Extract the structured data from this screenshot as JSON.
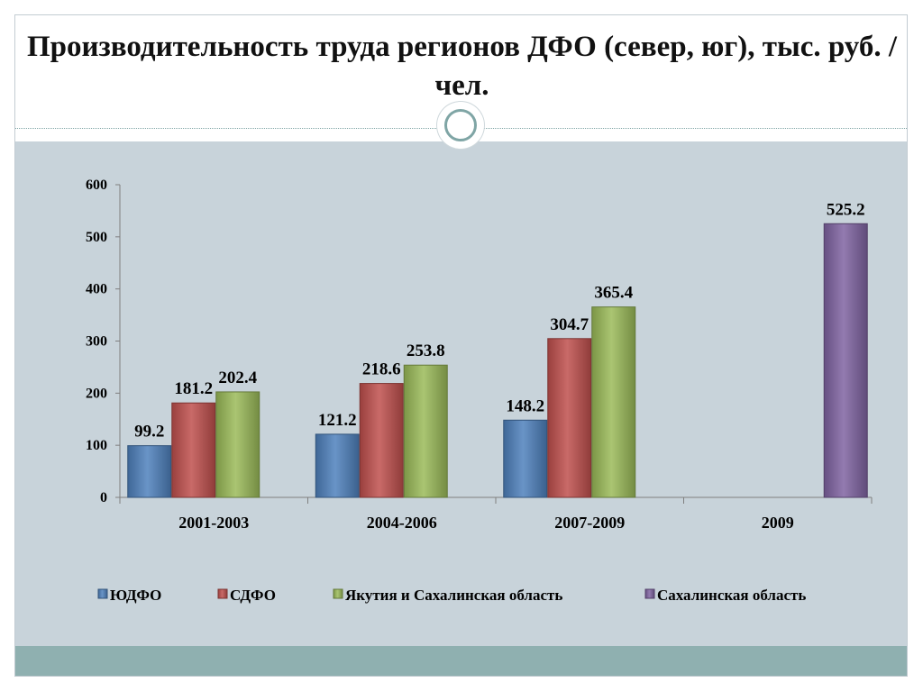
{
  "slide": {
    "title": "Производительность труда регионов ДФО (север, юг), тыс. руб. / чел."
  },
  "colors": {
    "background": "#ffffff",
    "content_area": "#c8d3da",
    "footer_bar": "#8fb0b0",
    "accent": "#7fa5a5"
  },
  "chart_data": {
    "type": "bar",
    "title": "Производительность труда регионов ДФО (север, юг), тыс. руб. / чел.",
    "xlabel": "",
    "ylabel": "",
    "ylim": [
      0,
      600
    ],
    "yticks": [
      0,
      100,
      200,
      300,
      400,
      500,
      600
    ],
    "grid": false,
    "legend_position": "bottom",
    "categories": [
      "2001-2003",
      "2004-2006",
      "2007-2009",
      "2009"
    ],
    "series": [
      {
        "name": "ЮДФО",
        "color": "#4f81bd",
        "values": [
          99.2,
          121.2,
          148.2,
          null
        ],
        "labels": [
          "99.2",
          "121.2",
          "148.2",
          null
        ]
      },
      {
        "name": "СДФО",
        "color": "#c0504d",
        "values": [
          181.2,
          218.6,
          304.7,
          null
        ],
        "labels": [
          "181.2",
          "218.6",
          "304.7",
          null
        ]
      },
      {
        "name": "Якутия и Сахалинская область",
        "color": "#9bbb59",
        "values": [
          202.4,
          253.8,
          365.4,
          null
        ],
        "labels": [
          "202.4",
          "253.8",
          "365.4",
          null
        ]
      },
      {
        "name": "Сахалинская область",
        "color": "#8064a2",
        "values": [
          null,
          null,
          null,
          525.2
        ],
        "labels": [
          null,
          null,
          null,
          "525.2"
        ]
      }
    ]
  }
}
